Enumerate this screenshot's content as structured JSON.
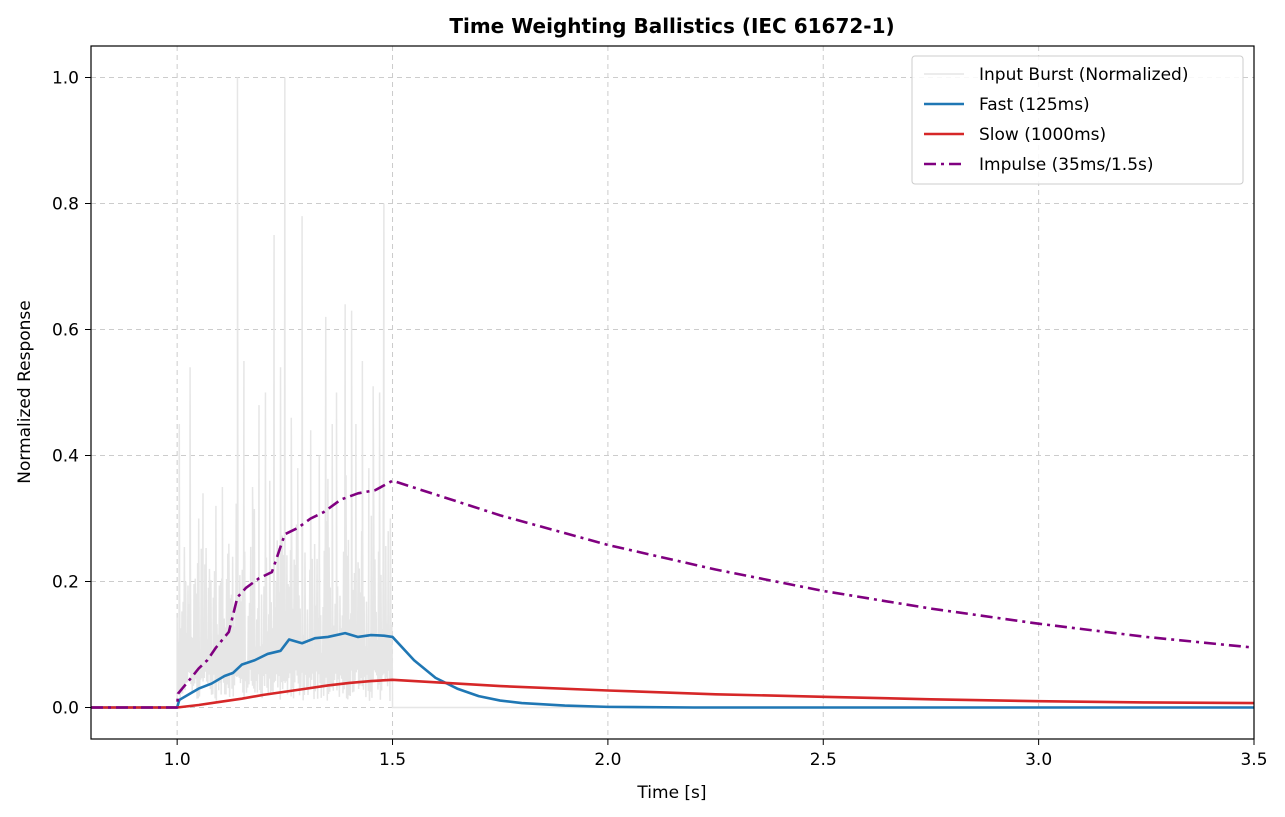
{
  "chart_data": {
    "type": "line",
    "title": "Time Weighting Ballistics (IEC 61672-1)",
    "xlabel": "Time [s]",
    "ylabel": "Normalized Response",
    "xlim": [
      0.8,
      3.5
    ],
    "ylim": [
      -0.05,
      1.05
    ],
    "xticks": [
      1.0,
      1.5,
      2.0,
      2.5,
      3.0,
      3.5
    ],
    "xtick_labels": [
      "1.0",
      "1.5",
      "2.0",
      "2.5",
      "3.0",
      "3.5"
    ],
    "yticks": [
      0.0,
      0.2,
      0.4,
      0.6,
      0.8,
      1.0
    ],
    "ytick_labels": [
      "0.0",
      "0.2",
      "0.4",
      "0.6",
      "0.8",
      "1.0"
    ],
    "grid": true,
    "legend_position": "top-right",
    "burst": {
      "start": 1.0,
      "end": 1.5
    },
    "series": [
      {
        "name": "Input Burst (Normalized)",
        "style": "solid",
        "color": "#e6e6e6",
        "peaks": [
          [
            1.005,
            0.45
          ],
          [
            1.02,
            0.2
          ],
          [
            1.03,
            0.54
          ],
          [
            1.05,
            0.3
          ],
          [
            1.06,
            0.34
          ],
          [
            1.075,
            0.22
          ],
          [
            1.09,
            0.32
          ],
          [
            1.105,
            0.35
          ],
          [
            1.12,
            0.26
          ],
          [
            1.14,
            1.0
          ],
          [
            1.155,
            0.55
          ],
          [
            1.175,
            0.35
          ],
          [
            1.19,
            0.48
          ],
          [
            1.205,
            0.5
          ],
          [
            1.215,
            0.36
          ],
          [
            1.225,
            0.75
          ],
          [
            1.24,
            0.54
          ],
          [
            1.25,
            1.0
          ],
          [
            1.265,
            0.46
          ],
          [
            1.28,
            0.38
          ],
          [
            1.29,
            0.78
          ],
          [
            1.31,
            0.44
          ],
          [
            1.33,
            0.4
          ],
          [
            1.345,
            0.62
          ],
          [
            1.36,
            0.45
          ],
          [
            1.37,
            0.5
          ],
          [
            1.39,
            0.64
          ],
          [
            1.405,
            0.63
          ],
          [
            1.415,
            0.45
          ],
          [
            1.43,
            0.55
          ],
          [
            1.445,
            0.38
          ],
          [
            1.455,
            0.51
          ],
          [
            1.47,
            0.5
          ],
          [
            1.48,
            0.8
          ],
          [
            1.495,
            0.3
          ]
        ]
      },
      {
        "name": "Fast (125ms)",
        "style": "solid",
        "color": "#1f77b4",
        "points": [
          [
            0.8,
            0.0
          ],
          [
            1.0,
            0.0
          ],
          [
            1.005,
            0.012
          ],
          [
            1.03,
            0.022
          ],
          [
            1.05,
            0.03
          ],
          [
            1.08,
            0.038
          ],
          [
            1.11,
            0.05
          ],
          [
            1.13,
            0.055
          ],
          [
            1.15,
            0.068
          ],
          [
            1.18,
            0.075
          ],
          [
            1.21,
            0.085
          ],
          [
            1.24,
            0.09
          ],
          [
            1.26,
            0.108
          ],
          [
            1.29,
            0.102
          ],
          [
            1.32,
            0.11
          ],
          [
            1.35,
            0.112
          ],
          [
            1.39,
            0.118
          ],
          [
            1.42,
            0.112
          ],
          [
            1.45,
            0.115
          ],
          [
            1.48,
            0.114
          ],
          [
            1.5,
            0.112
          ],
          [
            1.55,
            0.075
          ],
          [
            1.6,
            0.047
          ],
          [
            1.65,
            0.03
          ],
          [
            1.7,
            0.018
          ],
          [
            1.75,
            0.011
          ],
          [
            1.8,
            0.007
          ],
          [
            1.9,
            0.003
          ],
          [
            2.0,
            0.001
          ],
          [
            2.2,
            0.0
          ],
          [
            3.5,
            0.0
          ]
        ]
      },
      {
        "name": "Slow (1000ms)",
        "style": "solid",
        "color": "#d62728",
        "points": [
          [
            0.8,
            0.0
          ],
          [
            1.0,
            0.0
          ],
          [
            1.05,
            0.004
          ],
          [
            1.1,
            0.009
          ],
          [
            1.15,
            0.014
          ],
          [
            1.2,
            0.02
          ],
          [
            1.25,
            0.025
          ],
          [
            1.3,
            0.03
          ],
          [
            1.35,
            0.035
          ],
          [
            1.4,
            0.039
          ],
          [
            1.45,
            0.042
          ],
          [
            1.5,
            0.044
          ],
          [
            1.75,
            0.034
          ],
          [
            2.0,
            0.027
          ],
          [
            2.25,
            0.021
          ],
          [
            2.5,
            0.017
          ],
          [
            2.75,
            0.013
          ],
          [
            3.0,
            0.01
          ],
          [
            3.25,
            0.008
          ],
          [
            3.5,
            0.007
          ]
        ]
      },
      {
        "name": "Impulse (35ms/1.5s)",
        "style": "dashdot",
        "color": "#800080",
        "points": [
          [
            0.8,
            0.0
          ],
          [
            1.0,
            0.0
          ],
          [
            1.002,
            0.022
          ],
          [
            1.03,
            0.045
          ],
          [
            1.05,
            0.062
          ],
          [
            1.07,
            0.075
          ],
          [
            1.09,
            0.095
          ],
          [
            1.12,
            0.12
          ],
          [
            1.14,
            0.175
          ],
          [
            1.16,
            0.19
          ],
          [
            1.19,
            0.205
          ],
          [
            1.22,
            0.215
          ],
          [
            1.25,
            0.275
          ],
          [
            1.28,
            0.285
          ],
          [
            1.31,
            0.3
          ],
          [
            1.34,
            0.31
          ],
          [
            1.38,
            0.33
          ],
          [
            1.42,
            0.34
          ],
          [
            1.46,
            0.345
          ],
          [
            1.5,
            0.36
          ],
          [
            1.75,
            0.305
          ],
          [
            2.0,
            0.258
          ],
          [
            2.25,
            0.219
          ],
          [
            2.5,
            0.185
          ],
          [
            2.75,
            0.157
          ],
          [
            3.0,
            0.133
          ],
          [
            3.25,
            0.112
          ],
          [
            3.5,
            0.095
          ]
        ]
      }
    ]
  }
}
